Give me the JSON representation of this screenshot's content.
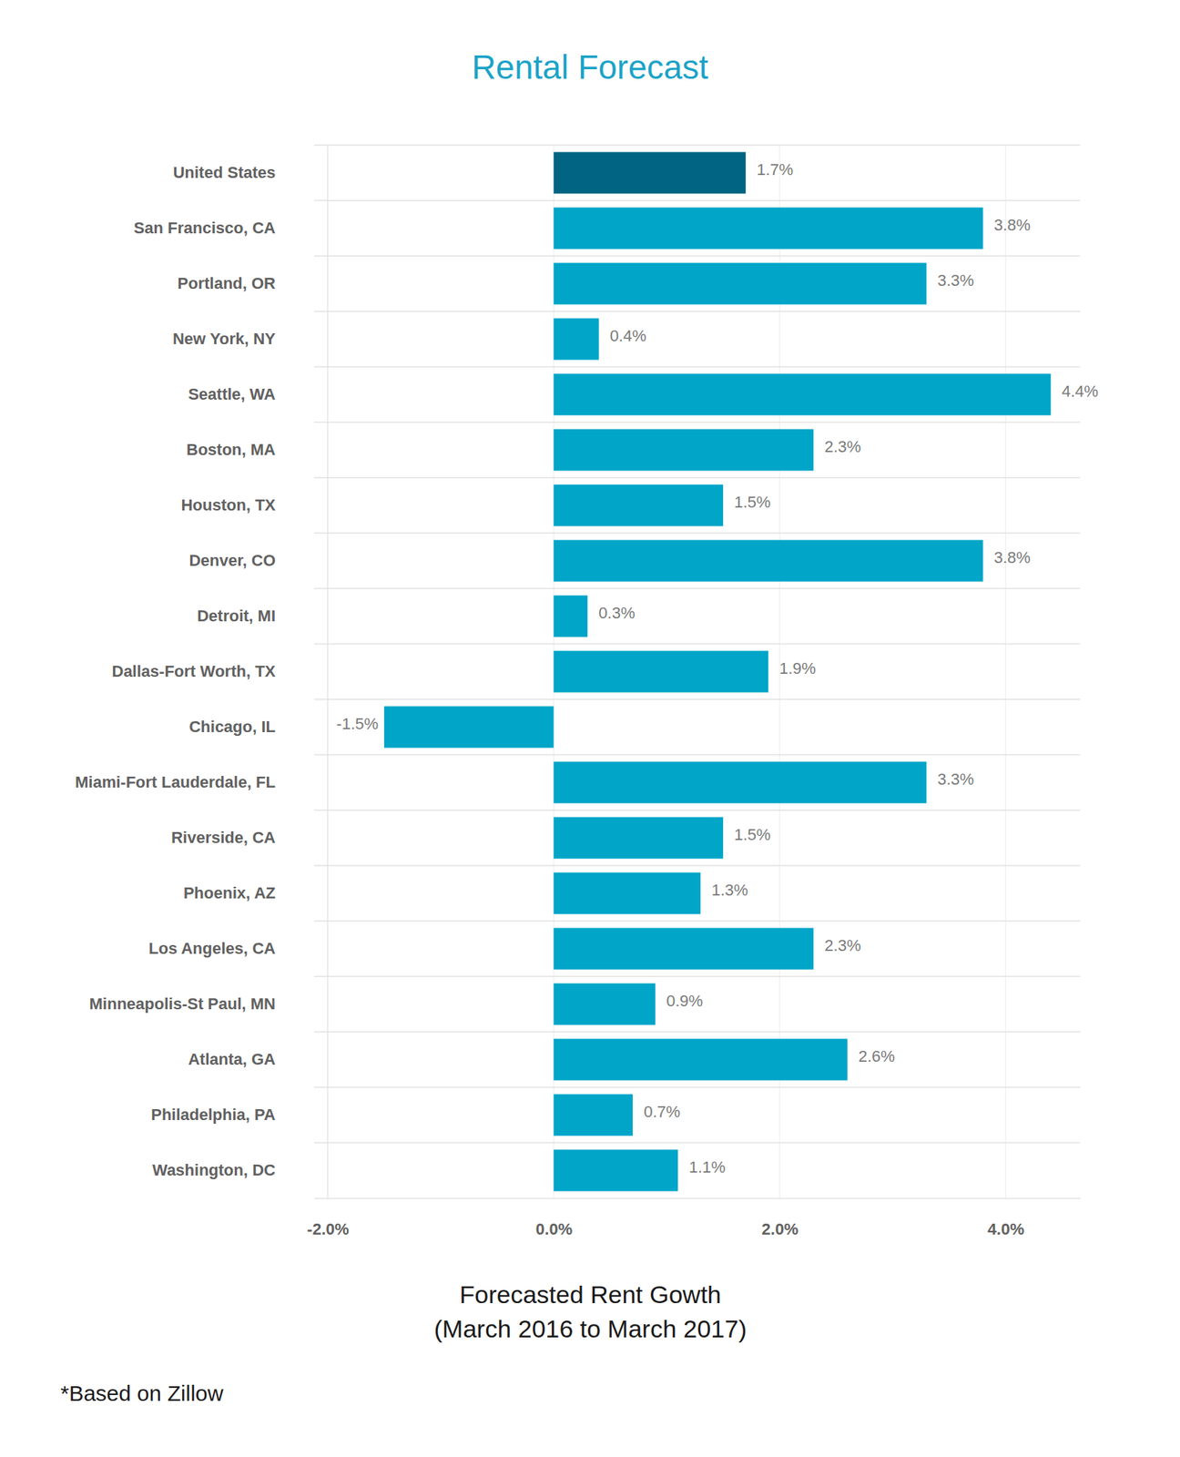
{
  "chart_data": {
    "type": "bar",
    "orientation": "horizontal",
    "title": "Rental Forecast",
    "x_label": [
      "Forecasted Rent Gowth",
      "(March 2016 to March 2017)"
    ],
    "footnote": "*Based on Zillow",
    "categories": [
      "United States",
      "San Francisco, CA",
      "Portland, OR",
      "New York, NY",
      "Seattle, WA",
      "Boston, MA",
      "Houston, TX",
      "Denver, CO",
      "Detroit, MI",
      "Dallas-Fort Worth, TX",
      "Chicago, IL",
      "Miami-Fort Lauderdale, FL",
      "Riverside, CA",
      "Phoenix, AZ",
      "Los Angeles, CA",
      "Minneapolis-St Paul, MN",
      "Atlanta, GA",
      "Philadelphia, PA",
      "Washington, DC"
    ],
    "values": [
      1.7,
      3.8,
      3.3,
      0.4,
      4.4,
      2.3,
      1.5,
      3.8,
      0.3,
      1.9,
      -1.5,
      3.3,
      1.5,
      1.3,
      2.3,
      0.9,
      2.6,
      0.7,
      1.1
    ],
    "value_labels": [
      "1.7%",
      "3.8%",
      "3.3%",
      "0.4%",
      "4.4%",
      "2.3%",
      "1.5%",
      "3.8%",
      "0.3%",
      "1.9%",
      "-1.5%",
      "3.3%",
      "1.5%",
      "1.3%",
      "2.3%",
      "0.9%",
      "2.6%",
      "0.7%",
      "1.1%"
    ],
    "colors": [
      "#006482",
      "#00a5c8",
      "#00a5c8",
      "#00a5c8",
      "#00a5c8",
      "#00a5c8",
      "#00a5c8",
      "#00a5c8",
      "#00a5c8",
      "#00a5c8",
      "#00a5c8",
      "#00a5c8",
      "#00a5c8",
      "#00a5c8",
      "#00a5c8",
      "#00a5c8",
      "#00a5c8",
      "#00a5c8",
      "#00a5c8"
    ],
    "xlim": [
      -2.12,
      4.66
    ],
    "xticks": [
      {
        "value": -2,
        "label": "-2.0%"
      },
      {
        "value": 0,
        "label": "0.0%"
      },
      {
        "value": 2,
        "label": "2.0%"
      },
      {
        "value": 4,
        "label": "4.0%"
      }
    ],
    "grid": true,
    "data_labels": true
  }
}
